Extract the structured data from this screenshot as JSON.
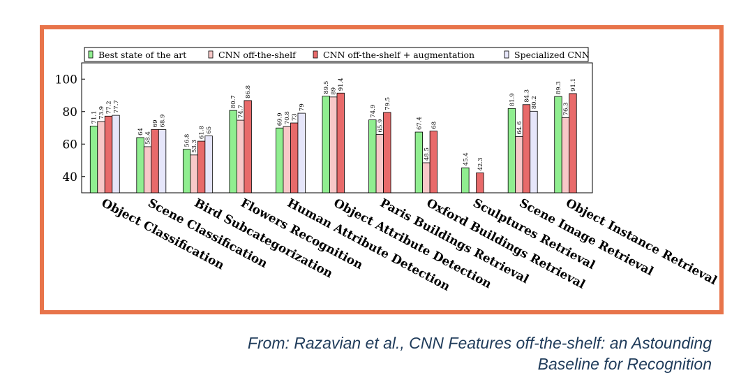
{
  "chart_data": {
    "type": "bar",
    "categories": [
      "Object Classification",
      "Scene Classification",
      "Bird Subcategorization",
      "Flowers Recognition",
      "Human Attribute Detection",
      "Object Attribute Detection",
      "Paris Buildings Retrieval",
      "Oxford Buildings Retrieval",
      "Sculptures Retrieval",
      "Scene Image Retrieval",
      "Object Instance Retrieval"
    ],
    "series": [
      {
        "name": "Best state of the art",
        "color": "#90ee90",
        "values": [
          71.1,
          64,
          56.8,
          80.7,
          69.9,
          89.5,
          74.9,
          67.4,
          45.4,
          81.9,
          89.3
        ]
      },
      {
        "name": "CNN off-the-shelf",
        "color": "#f8c8c8",
        "values": [
          73.9,
          58.4,
          53.3,
          74.7,
          70.8,
          89,
          65.9,
          48.5,
          null,
          64.6,
          76.3
        ]
      },
      {
        "name": "CNN off-the-shelf + augmentation",
        "color": "#e86a6a",
        "values": [
          77.2,
          69,
          61.8,
          86.8,
          73,
          91.4,
          79.5,
          68,
          42.3,
          84.3,
          91.1
        ]
      },
      {
        "name": "Specialized CNN",
        "color": "#e6e6fa",
        "values": [
          77.7,
          68.9,
          65,
          null,
          79,
          null,
          null,
          null,
          null,
          80.2,
          null
        ]
      }
    ],
    "y_ticks": [
      40,
      60,
      80,
      100
    ],
    "ylim": [
      30,
      110
    ],
    "legend_position": "top"
  },
  "caption": {
    "line1": "From: Razavian et al., CNN Features off-the-shelf: an Astounding",
    "line2": "Baseline for Recognition"
  }
}
